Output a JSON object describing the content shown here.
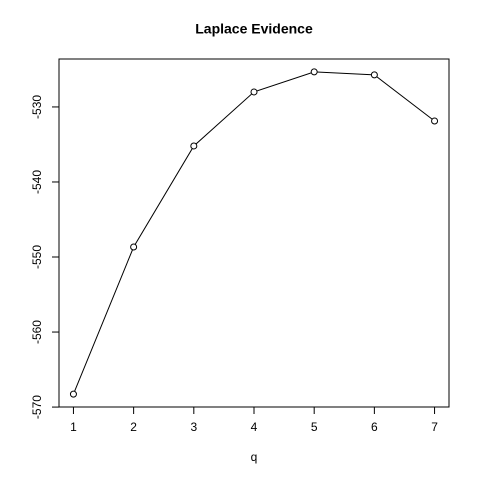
{
  "chart_data": {
    "type": "line",
    "title": "Laplace Evidence",
    "x_label": "q",
    "x": [
      1,
      2,
      3,
      4,
      5,
      6,
      7
    ],
    "y": [
      -568.27,
      -548.67,
      -535.2,
      -528.0,
      -525.33,
      -525.73,
      -531.87
    ],
    "color": "#000000",
    "xlim": [
      0.76,
      7.24
    ],
    "ylim": [
      -569.99,
      -523.61
    ],
    "xticks": [
      1,
      2,
      3,
      4,
      5,
      6,
      7
    ],
    "yticks": [
      -570,
      -560,
      -550,
      -540,
      -530
    ]
  }
}
